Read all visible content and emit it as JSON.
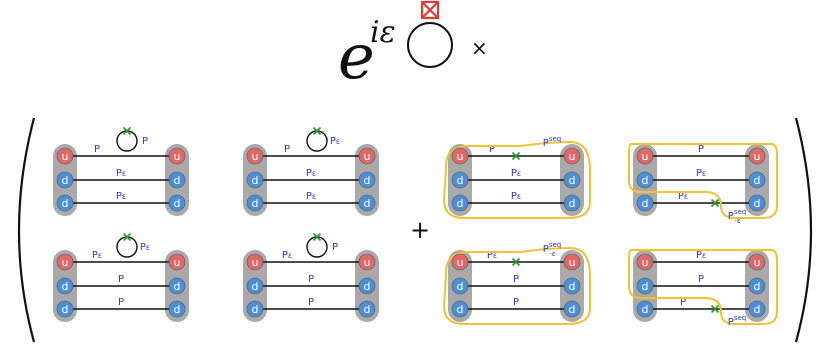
{
  "prefactor": {
    "base": "e",
    "exponent": "iε",
    "times": "×"
  },
  "plus": "+",
  "colors": {
    "up_quark": "#e06868",
    "down_quark": "#4a8fd8",
    "blob": "#a9a9a9",
    "label": "#2b3bd6",
    "insertion": "#2e9e2e",
    "seq_loop": "#f1c232",
    "operator_box": "#e53935"
  },
  "quarks": {
    "up": "u",
    "down": "d"
  },
  "diagrams": [
    {
      "row": 0,
      "col": 0,
      "loop": true,
      "loop_label": "P",
      "lines": [
        "P",
        "Pε",
        "Pε"
      ]
    },
    {
      "row": 0,
      "col": 1,
      "loop": true,
      "loop_label": "Pε",
      "lines": [
        "P",
        "Pε",
        "Pε"
      ]
    },
    {
      "row": 0,
      "col": 2,
      "loop": false,
      "seq_label": "Pseq",
      "lines": [
        "P",
        "Pε",
        "Pε"
      ]
    },
    {
      "row": 0,
      "col": 3,
      "loop": false,
      "seq_label": "P-εseq",
      "lines": [
        "P",
        "Pε",
        "Pε"
      ]
    },
    {
      "row": 1,
      "col": 0,
      "loop": true,
      "loop_label": "Pε",
      "lines": [
        "Pε",
        "P",
        "P"
      ]
    },
    {
      "row": 1,
      "col": 1,
      "loop": true,
      "loop_label": "P",
      "lines": [
        "Pε",
        "P",
        "P"
      ]
    },
    {
      "row": 1,
      "col": 2,
      "loop": false,
      "seq_label": "P-εseq",
      "lines": [
        "Pε",
        "P",
        "P"
      ]
    },
    {
      "row": 1,
      "col": 3,
      "loop": false,
      "seq_label": "Pseq",
      "lines": [
        "Pε",
        "P",
        "P"
      ]
    }
  ]
}
